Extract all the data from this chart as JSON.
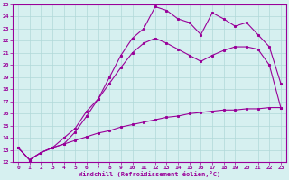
{
  "xlabel": "Windchill (Refroidissement éolien,°C)",
  "background_color": "#d6f0f0",
  "grid_color": "#b0d8d8",
  "line_color": "#990099",
  "xlim": [
    -0.5,
    23.5
  ],
  "ylim": [
    12,
    25
  ],
  "xticks": [
    0,
    1,
    2,
    3,
    4,
    5,
    6,
    7,
    8,
    9,
    10,
    11,
    12,
    13,
    14,
    15,
    16,
    17,
    18,
    19,
    20,
    21,
    22,
    23
  ],
  "yticks": [
    12,
    13,
    14,
    15,
    16,
    17,
    18,
    19,
    20,
    21,
    22,
    23,
    24,
    25
  ],
  "line1_x": [
    0,
    1,
    2,
    3,
    4,
    5,
    6,
    7,
    8,
    9,
    10,
    11,
    12,
    13,
    14,
    15,
    16,
    17,
    18,
    19,
    20,
    21,
    22,
    23
  ],
  "line1_y": [
    13.2,
    12.2,
    12.8,
    13.2,
    13.5,
    13.8,
    14.1,
    14.4,
    14.6,
    14.9,
    15.1,
    15.3,
    15.5,
    15.7,
    15.8,
    16.0,
    16.1,
    16.2,
    16.3,
    16.3,
    16.4,
    16.4,
    16.5,
    16.5
  ],
  "line2_x": [
    0,
    1,
    2,
    3,
    4,
    5,
    6,
    7,
    8,
    9,
    10,
    11,
    12,
    13,
    14,
    15,
    16,
    17,
    18,
    19,
    20,
    21,
    22,
    23
  ],
  "line2_y": [
    13.2,
    12.2,
    12.8,
    13.2,
    13.5,
    14.5,
    15.8,
    17.2,
    18.5,
    19.8,
    21.0,
    21.8,
    22.2,
    21.8,
    21.3,
    20.8,
    20.3,
    20.8,
    21.2,
    21.5,
    21.5,
    21.3,
    20.0,
    16.5
  ],
  "line3_x": [
    0,
    1,
    2,
    3,
    4,
    5,
    6,
    7,
    8,
    9,
    10,
    11,
    12,
    13,
    14,
    15,
    16,
    17,
    18,
    19,
    20,
    21,
    22,
    23
  ],
  "line3_y": [
    13.2,
    12.2,
    12.8,
    13.2,
    14.0,
    14.8,
    16.2,
    17.2,
    19.0,
    20.8,
    22.2,
    23.0,
    24.8,
    24.5,
    23.8,
    23.5,
    22.5,
    24.3,
    23.8,
    23.2,
    23.5,
    22.5,
    21.5,
    18.5
  ]
}
